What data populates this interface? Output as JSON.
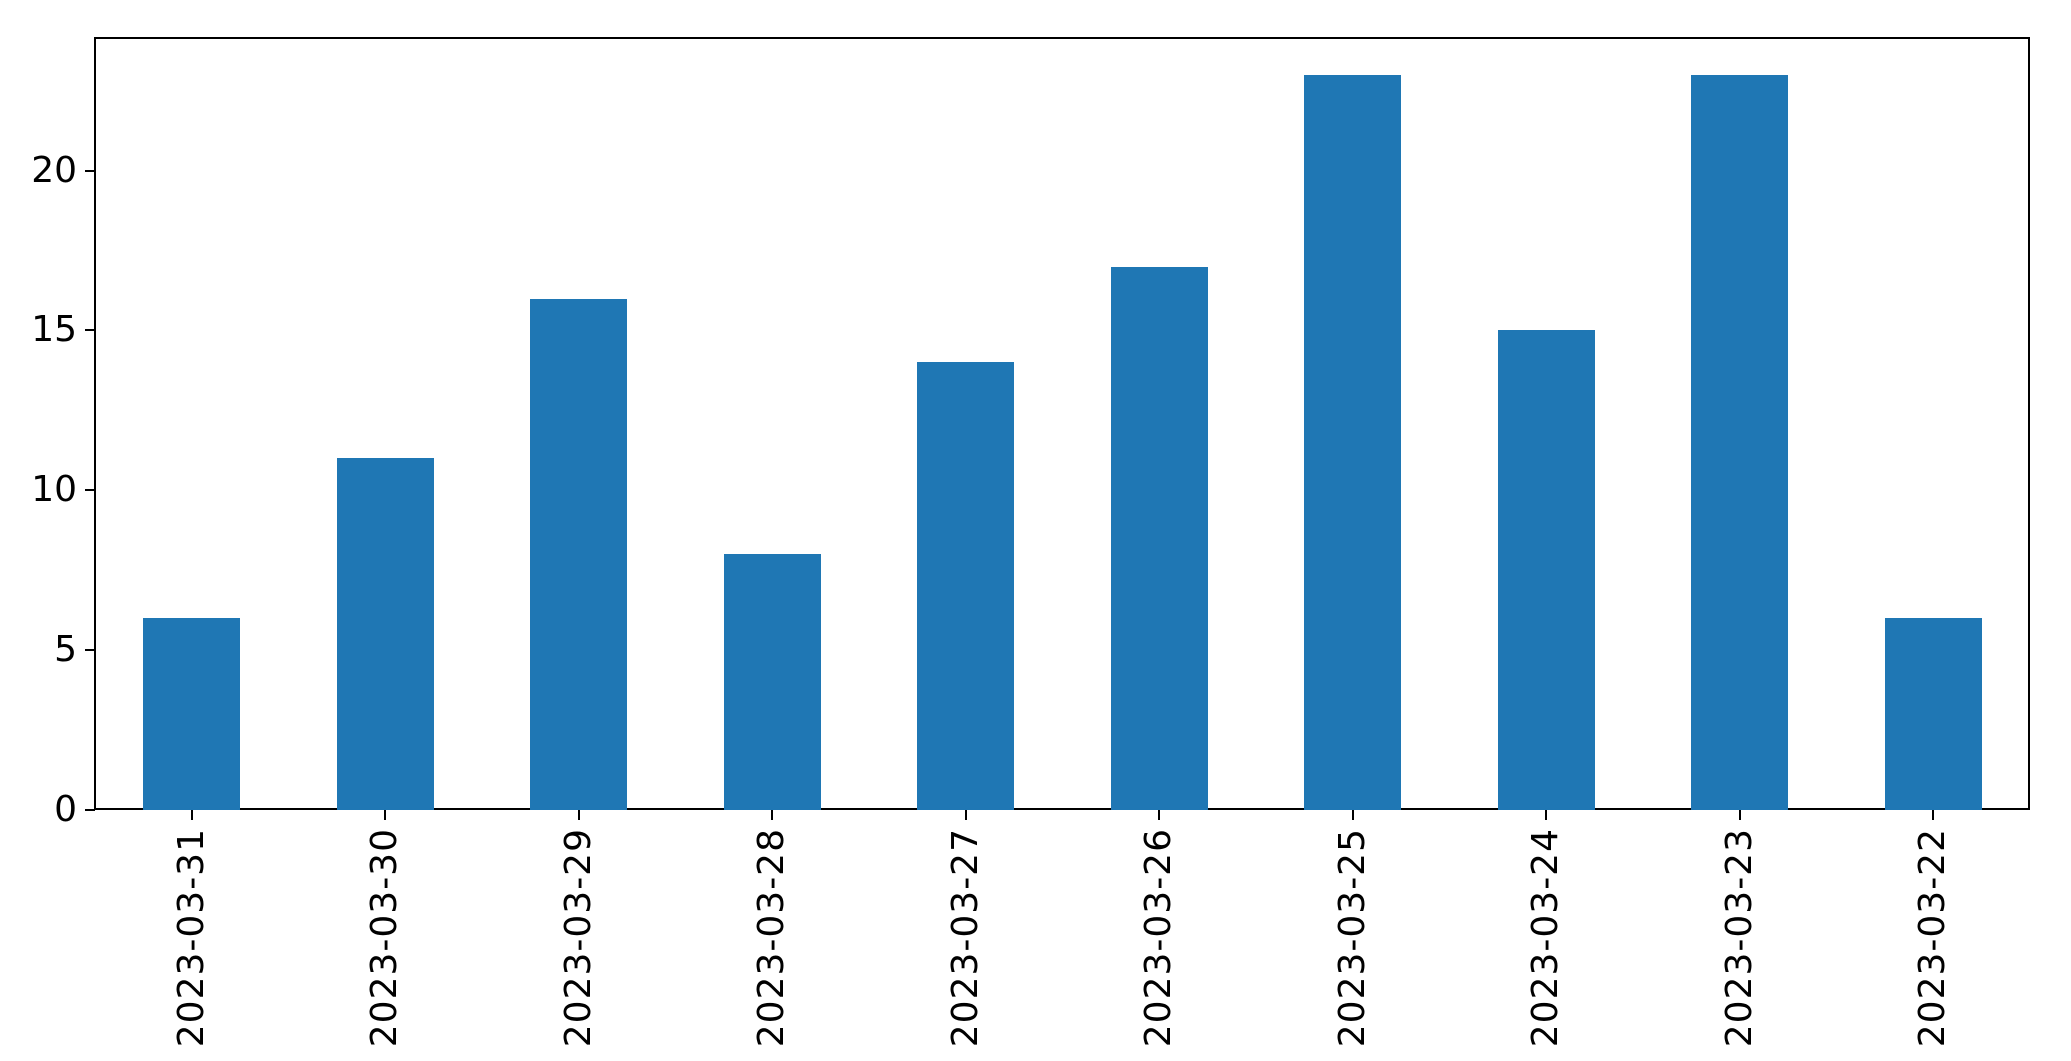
{
  "chart_data": {
    "type": "bar",
    "title": "",
    "xlabel": "",
    "ylabel": "",
    "categories": [
      "2023-03-31",
      "2023-03-30",
      "2023-03-29",
      "2023-03-28",
      "2023-03-27",
      "2023-03-26",
      "2023-03-25",
      "2023-03-24",
      "2023-03-23",
      "2023-03-22"
    ],
    "values": [
      6,
      11,
      16,
      8,
      14,
      17,
      23,
      15,
      23,
      6
    ],
    "yticks": [
      0,
      5,
      10,
      15,
      20
    ],
    "ylim": [
      0,
      24.15
    ],
    "xlim_pad_categories": 0.5,
    "bar_width_fraction": 0.5,
    "x_tick_rotation": 90,
    "grid": false,
    "legend": null,
    "bar_color": "#1f77b4",
    "background_color": "#ffffff",
    "axis_color": "#000000"
  }
}
